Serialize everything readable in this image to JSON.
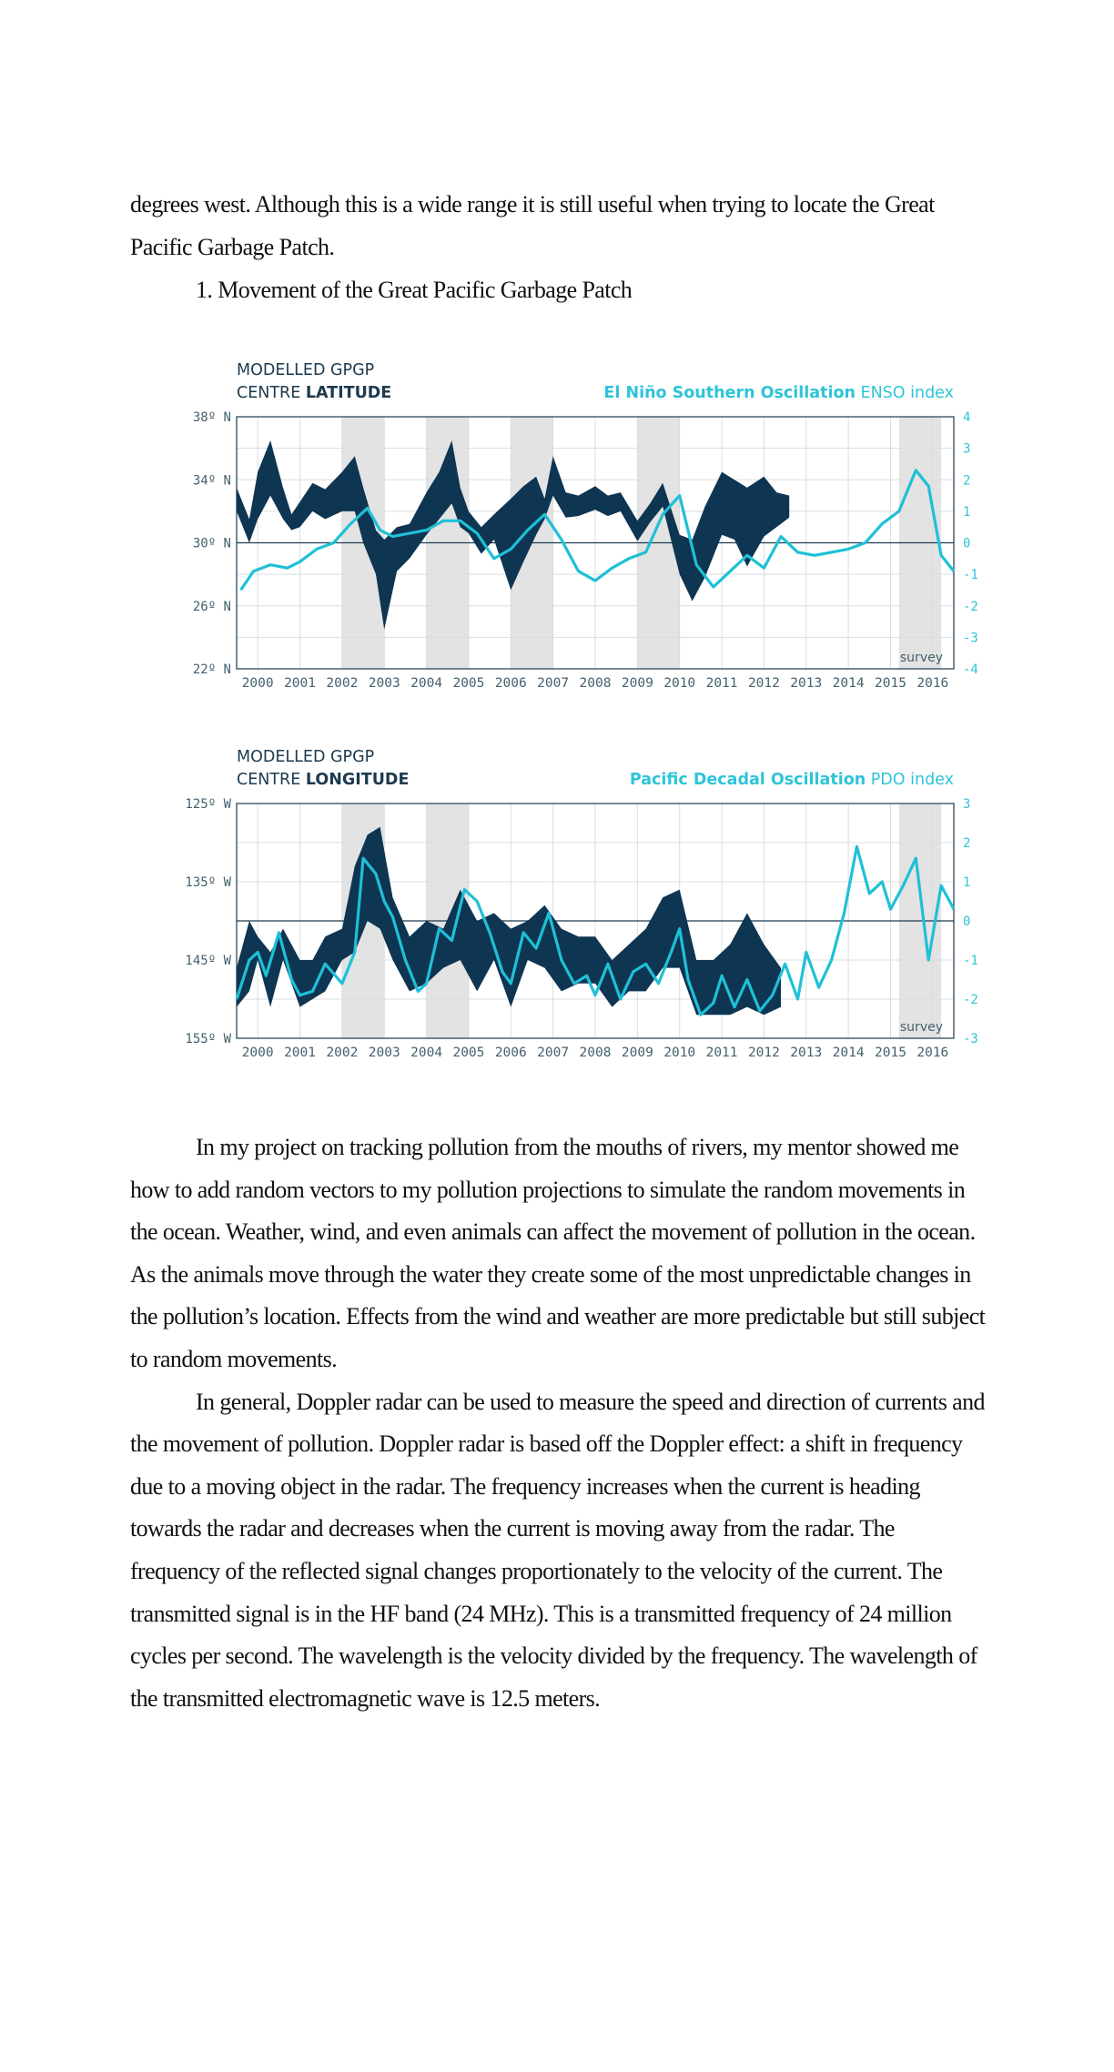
{
  "intro": {
    "line1": "degrees west. Although this is a wide range it is still useful when trying to locate the Great",
    "line2": "Pacific Garbage Patch.",
    "list_item": "1. Movement of the Great Pacific Garbage Patch"
  },
  "paragraphs": [
    "In my project on tracking pollution from the mouths of rivers, my mentor showed me how to add random vectors to my pollution projections to simulate the random movements in the ocean. Weather, wind, and even animals can affect the movement of pollution in the ocean. As the animals move through the water they create some of the most unpredictable changes in the pollution’s location. Effects from the wind and weather are more predictable but still subject to random movements.",
    "In general, Doppler radar can be used to measure the speed and direction of currents and the movement of pollution. Doppler radar is based off the Doppler effect: a shift in frequency due to a moving object in the radar. The frequency increases when the current is heading towards the radar and decreases when the current is moving away from the radar. The frequency of the reflected signal changes proportionately to the velocity of the current. The transmitted signal is in the HF band (24 MHz). This is a transmitted frequency of 24 million cycles per second. The wavelength is the velocity divided by the frequency. The wavelength of the transmitted electromagnetic wave is 12.5 meters."
  ],
  "colors": {
    "navy": "#0e3552",
    "cyan": "#1fc0d6",
    "shade": "#e3e3e3",
    "grid": "#d9dde0"
  },
  "chart_data": [
    {
      "type": "line",
      "title_line1": "MODELLED GPGP",
      "title_line2_prefix": "CENTRE ",
      "title_line2_bold": "LATITUDE",
      "right_title_bold": "El Niño Southern Oscillation",
      "right_title_rest": " ENSO index",
      "survey_label": "survey",
      "x_ticks": [
        "2000",
        "2001",
        "2002",
        "2003",
        "2004",
        "2005",
        "2006",
        "2007",
        "2008",
        "2009",
        "2010",
        "2011",
        "2012",
        "2013",
        "2014",
        "2015",
        "2016"
      ],
      "left_ticks": [
        "38º  N",
        "34º  N",
        "30º  N",
        "26º  N",
        "22º  N"
      ],
      "right_ticks": [
        "4",
        "3",
        "2",
        "1",
        "0",
        "-1",
        "-2",
        "-3",
        "-4"
      ],
      "ylim_left": [
        22,
        38
      ],
      "ylim_right": [
        -4,
        4
      ],
      "xlim": [
        1999.5,
        2016.5
      ],
      "survey_periods": [
        [
          2002.0,
          2003.0
        ],
        [
          2004.0,
          2005.0
        ],
        [
          2006.0,
          2007.0
        ],
        [
          2009.0,
          2010.0
        ],
        [
          2015.2,
          2016.2
        ]
      ],
      "series": [
        {
          "kind": "band",
          "axis": "left",
          "x": [
            1999.5,
            1999.8,
            2000.0,
            2000.3,
            2000.6,
            2000.8,
            2001.0,
            2001.3,
            2001.6,
            2002.0,
            2002.3,
            2002.5,
            2002.8,
            2003.0,
            2003.3,
            2003.6,
            2004.0,
            2004.3,
            2004.6,
            2004.8,
            2005.0,
            2005.3,
            2005.6,
            2006.0,
            2006.3,
            2006.6,
            2006.8,
            2007.0,
            2007.3,
            2007.6,
            2008.0,
            2008.3,
            2008.6,
            2009.0,
            2009.3,
            2009.6,
            2010.0,
            2010.3,
            2010.6,
            2011.0,
            2011.3,
            2011.6,
            2012.0,
            2012.3,
            2012.6
          ],
          "upper": [
            33.5,
            31.5,
            34.5,
            36.5,
            33.5,
            31.8,
            32.6,
            33.8,
            33.4,
            34.5,
            35.5,
            33.5,
            30.8,
            30.2,
            31.0,
            31.2,
            33.2,
            34.5,
            36.5,
            33.5,
            32.0,
            31.0,
            31.8,
            32.8,
            33.6,
            34.2,
            32.8,
            35.5,
            33.2,
            33.0,
            33.6,
            33.0,
            33.2,
            31.4,
            32.5,
            33.8,
            30.5,
            30.2,
            32.3,
            34.5,
            34.0,
            33.5,
            34.2,
            33.2,
            33.0
          ],
          "lower": [
            32.0,
            30.0,
            31.5,
            33.0,
            31.5,
            30.8,
            31.0,
            32.0,
            31.5,
            32.0,
            32.0,
            30.0,
            28.0,
            24.5,
            28.2,
            29.0,
            30.5,
            31.5,
            32.5,
            31.0,
            30.6,
            29.3,
            30.2,
            27.0,
            28.8,
            30.5,
            31.5,
            33.0,
            31.6,
            31.7,
            32.1,
            31.7,
            32.0,
            30.1,
            31.3,
            32.3,
            28.0,
            26.3,
            27.8,
            30.5,
            30.2,
            28.5,
            30.4,
            31.0,
            31.6
          ]
        },
        {
          "kind": "line",
          "axis": "right",
          "name": "ENSO index",
          "x": [
            1999.6,
            1999.9,
            2000.3,
            2000.7,
            2001.0,
            2001.4,
            2001.8,
            2002.2,
            2002.6,
            2002.9,
            2003.2,
            2003.6,
            2004.0,
            2004.4,
            2004.8,
            2005.2,
            2005.6,
            2006.0,
            2006.4,
            2006.8,
            2007.2,
            2007.6,
            2008.0,
            2008.4,
            2008.8,
            2009.2,
            2009.6,
            2010.0,
            2010.4,
            2010.8,
            2011.2,
            2011.6,
            2012.0,
            2012.4,
            2012.8,
            2013.2,
            2013.6,
            2014.0,
            2014.4,
            2014.8,
            2015.2,
            2015.6,
            2015.9,
            2016.2,
            2016.5
          ],
          "values": [
            -1.5,
            -0.9,
            -0.7,
            -0.8,
            -0.6,
            -0.2,
            0.0,
            0.6,
            1.1,
            0.4,
            0.2,
            0.3,
            0.4,
            0.7,
            0.7,
            0.3,
            -0.5,
            -0.2,
            0.4,
            0.9,
            0.1,
            -0.9,
            -1.2,
            -0.8,
            -0.5,
            -0.3,
            0.9,
            1.5,
            -0.7,
            -1.4,
            -0.9,
            -0.4,
            -0.8,
            0.2,
            -0.3,
            -0.4,
            -0.3,
            -0.2,
            0.0,
            0.6,
            1.0,
            2.3,
            1.8,
            -0.4,
            -0.9
          ]
        }
      ]
    },
    {
      "type": "line",
      "title_line1": "MODELLED GPGP",
      "title_line2_prefix": "CENTRE ",
      "title_line2_bold": "LONGITUDE",
      "right_title_bold": "Pacific Decadal Oscillation",
      "right_title_rest": " PDO index",
      "survey_label": "survey",
      "x_ticks": [
        "2000",
        "2001",
        "2002",
        "2003",
        "2004",
        "2005",
        "2006",
        "2007",
        "2008",
        "2009",
        "2010",
        "2011",
        "2012",
        "2013",
        "2014",
        "2015",
        "2016"
      ],
      "left_ticks": [
        "125º  W",
        "135º  W",
        "145º  W",
        "155º  W"
      ],
      "right_ticks": [
        "3",
        "2",
        "1",
        "0",
        "-1",
        "-2",
        "-3"
      ],
      "ylim_left": [
        -155,
        -125
      ],
      "ylim_right": [
        -3,
        3
      ],
      "xlim": [
        1999.5,
        2016.5
      ],
      "survey_periods": [
        [
          2002.0,
          2003.0
        ],
        [
          2004.0,
          2005.0
        ],
        [
          2015.2,
          2016.2
        ]
      ],
      "series": [
        {
          "kind": "band",
          "axis": "left",
          "x": [
            1999.5,
            1999.8,
            2000.0,
            2000.3,
            2000.6,
            2001.0,
            2001.3,
            2001.6,
            2002.0,
            2002.3,
            2002.6,
            2002.9,
            2003.2,
            2003.6,
            2004.0,
            2004.4,
            2004.8,
            2005.2,
            2005.6,
            2006.0,
            2006.4,
            2006.8,
            2007.2,
            2007.6,
            2008.0,
            2008.4,
            2008.8,
            2009.2,
            2009.6,
            2010.0,
            2010.4,
            2010.8,
            2011.2,
            2011.6,
            2012.0,
            2012.4
          ],
          "upper": [
            -146,
            -140,
            -142,
            -144,
            -141,
            -145,
            -145,
            -142,
            -141,
            -133,
            -129,
            -128,
            -137,
            -142,
            -140,
            -141,
            -136,
            -140,
            -139,
            -141,
            -140,
            -138,
            -141,
            -142,
            -142,
            -145,
            -143,
            -141,
            -137,
            -136,
            -145,
            -145,
            -143,
            -139,
            -143,
            -146
          ],
          "lower": [
            -151,
            -149,
            -145,
            -151,
            -145,
            -151,
            -150,
            -149,
            -145,
            -144,
            -140,
            -141,
            -145,
            -149,
            -148,
            -146,
            -145,
            -149,
            -145,
            -151,
            -145,
            -146,
            -149,
            -148,
            -148,
            -151,
            -149,
            -149,
            -146,
            -146,
            -152,
            -152,
            -152,
            -151,
            -152,
            -151
          ]
        },
        {
          "kind": "line",
          "axis": "right",
          "name": "PDO index",
          "x": [
            1999.5,
            1999.8,
            2000.0,
            2000.2,
            2000.5,
            2000.8,
            2001.0,
            2001.3,
            2001.6,
            2002.0,
            2002.3,
            2002.5,
            2002.8,
            2003.0,
            2003.2,
            2003.5,
            2003.8,
            2004.0,
            2004.3,
            2004.6,
            2004.9,
            2005.2,
            2005.5,
            2005.8,
            2006.0,
            2006.3,
            2006.6,
            2006.9,
            2007.2,
            2007.5,
            2007.8,
            2008.0,
            2008.3,
            2008.6,
            2008.9,
            2009.2,
            2009.5,
            2009.8,
            2010.0,
            2010.2,
            2010.5,
            2010.8,
            2011.0,
            2011.3,
            2011.6,
            2011.9,
            2012.2,
            2012.5,
            2012.8,
            2013.0,
            2013.3,
            2013.6,
            2013.9,
            2014.2,
            2014.5,
            2014.8,
            2015.0,
            2015.3,
            2015.6,
            2015.9,
            2016.2,
            2016.5
          ],
          "values": [
            -2.0,
            -1.0,
            -0.8,
            -1.4,
            -0.3,
            -1.5,
            -1.9,
            -1.8,
            -1.1,
            -1.6,
            -0.8,
            1.6,
            1.2,
            0.5,
            0.1,
            -1.0,
            -1.8,
            -1.6,
            -0.2,
            -0.5,
            0.8,
            0.5,
            -0.3,
            -1.3,
            -1.6,
            -0.3,
            -0.7,
            0.2,
            -1.0,
            -1.6,
            -1.4,
            -1.9,
            -1.1,
            -2.0,
            -1.3,
            -1.1,
            -1.6,
            -0.8,
            -0.2,
            -1.5,
            -2.4,
            -2.1,
            -1.4,
            -2.2,
            -1.5,
            -2.3,
            -1.9,
            -1.1,
            -2.0,
            -0.8,
            -1.7,
            -1.0,
            0.2,
            1.9,
            0.7,
            1.0,
            0.3,
            0.9,
            1.6,
            -1.0,
            0.9,
            0.3
          ]
        }
      ]
    }
  ]
}
